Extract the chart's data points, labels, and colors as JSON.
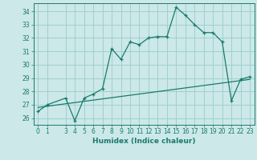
{
  "xlabel": "Humidex (Indice chaleur)",
  "ylabel": "",
  "bg_color": "#cce8e8",
  "grid_color": "#99cccc",
  "line_color": "#1a7a6e",
  "x_data": [
    0,
    1,
    3,
    4,
    5,
    6,
    7,
    8,
    9,
    10,
    11,
    12,
    13,
    14,
    15,
    16,
    17,
    18,
    19,
    20,
    21,
    22,
    23
  ],
  "y_data": [
    26.5,
    27.0,
    27.5,
    25.8,
    27.5,
    27.8,
    28.2,
    31.2,
    30.4,
    31.7,
    31.5,
    32.0,
    32.1,
    32.1,
    34.3,
    33.7,
    33.0,
    32.4,
    32.4,
    31.7,
    27.3,
    28.9,
    29.1
  ],
  "trend_x": [
    0,
    23
  ],
  "trend_y": [
    26.8,
    28.9
  ],
  "ylim": [
    25.5,
    34.6
  ],
  "xlim": [
    -0.5,
    23.5
  ],
  "yticks": [
    26,
    27,
    28,
    29,
    30,
    31,
    32,
    33,
    34
  ],
  "xticks": [
    0,
    1,
    3,
    4,
    5,
    6,
    7,
    8,
    9,
    10,
    11,
    12,
    13,
    14,
    15,
    16,
    17,
    18,
    19,
    20,
    21,
    22,
    23
  ],
  "xlabel_fontsize": 6.5,
  "tick_fontsize": 5.5
}
